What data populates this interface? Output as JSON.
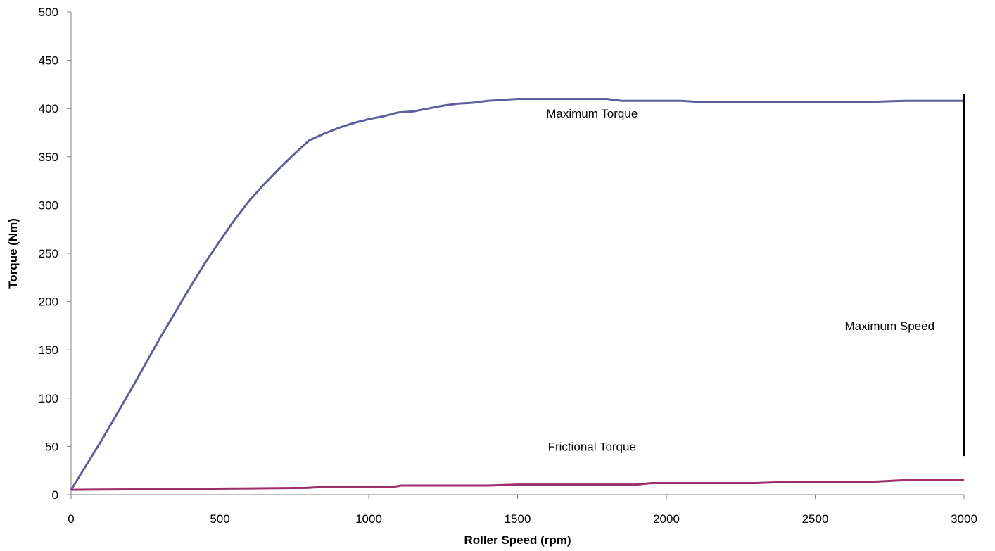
{
  "chart_data": {
    "type": "line",
    "title": "",
    "xlabel": "Roller Speed (rpm)",
    "ylabel": "Torque (Nm)",
    "xlim": [
      0,
      3000
    ],
    "ylim": [
      0,
      500
    ],
    "xticks": [
      0,
      500,
      1000,
      1500,
      2000,
      2500,
      3000
    ],
    "yticks": [
      0,
      50,
      100,
      150,
      200,
      250,
      300,
      350,
      400,
      450,
      500
    ],
    "grid": false,
    "legend": "none",
    "series": [
      {
        "color": "#5e5e9b",
        "points": [
          [
            0,
            5
          ],
          [
            100,
            55
          ],
          [
            200,
            108
          ],
          [
            300,
            163
          ],
          [
            400,
            215
          ],
          [
            450,
            240
          ],
          [
            500,
            263
          ],
          [
            550,
            285
          ],
          [
            600,
            305
          ],
          [
            650,
            322
          ],
          [
            700,
            338
          ],
          [
            750,
            353
          ],
          [
            800,
            367
          ],
          [
            850,
            374
          ],
          [
            900,
            380
          ],
          [
            950,
            385
          ],
          [
            1000,
            389
          ],
          [
            1050,
            392
          ],
          [
            1100,
            396
          ],
          [
            1150,
            397
          ],
          [
            1200,
            400
          ],
          [
            1250,
            403
          ],
          [
            1300,
            405
          ],
          [
            1350,
            406
          ],
          [
            1400,
            408
          ],
          [
            1500,
            410
          ],
          [
            1600,
            410
          ],
          [
            1700,
            410
          ],
          [
            1800,
            410
          ],
          [
            1850,
            408
          ],
          [
            1900,
            408
          ],
          [
            2000,
            408
          ],
          [
            2050,
            408
          ],
          [
            2100,
            407
          ],
          [
            2200,
            407
          ],
          [
            2300,
            407
          ],
          [
            2400,
            407
          ],
          [
            2500,
            407
          ],
          [
            2600,
            407
          ],
          [
            2700,
            407
          ],
          [
            2800,
            408
          ],
          [
            2900,
            408
          ],
          [
            3000,
            408
          ]
        ]
      },
      {
        "color": "#9c2e6b",
        "points": [
          [
            0,
            5
          ],
          [
            200,
            5.5
          ],
          [
            400,
            6
          ],
          [
            600,
            6.5
          ],
          [
            790,
            7
          ],
          [
            850,
            8
          ],
          [
            1000,
            8
          ],
          [
            1080,
            8
          ],
          [
            1110,
            9.5
          ],
          [
            1400,
            9.5
          ],
          [
            1500,
            10.5
          ],
          [
            1900,
            10.5
          ],
          [
            1950,
            12
          ],
          [
            2300,
            12
          ],
          [
            2430,
            13.5
          ],
          [
            2700,
            13.5
          ],
          [
            2800,
            15
          ],
          [
            3000,
            15
          ]
        ]
      }
    ],
    "annotations": [
      {
        "text": "Maximum Torque",
        "x": 1750,
        "y": 395
      },
      {
        "text": "Frictional Torque",
        "x": 1750,
        "y": 50
      },
      {
        "text": "Maximum Speed",
        "x": 2750,
        "y": 175
      }
    ],
    "vertical_line": {
      "x": 3000,
      "y_from": 40,
      "y_to": 415,
      "color": "#000000"
    }
  }
}
